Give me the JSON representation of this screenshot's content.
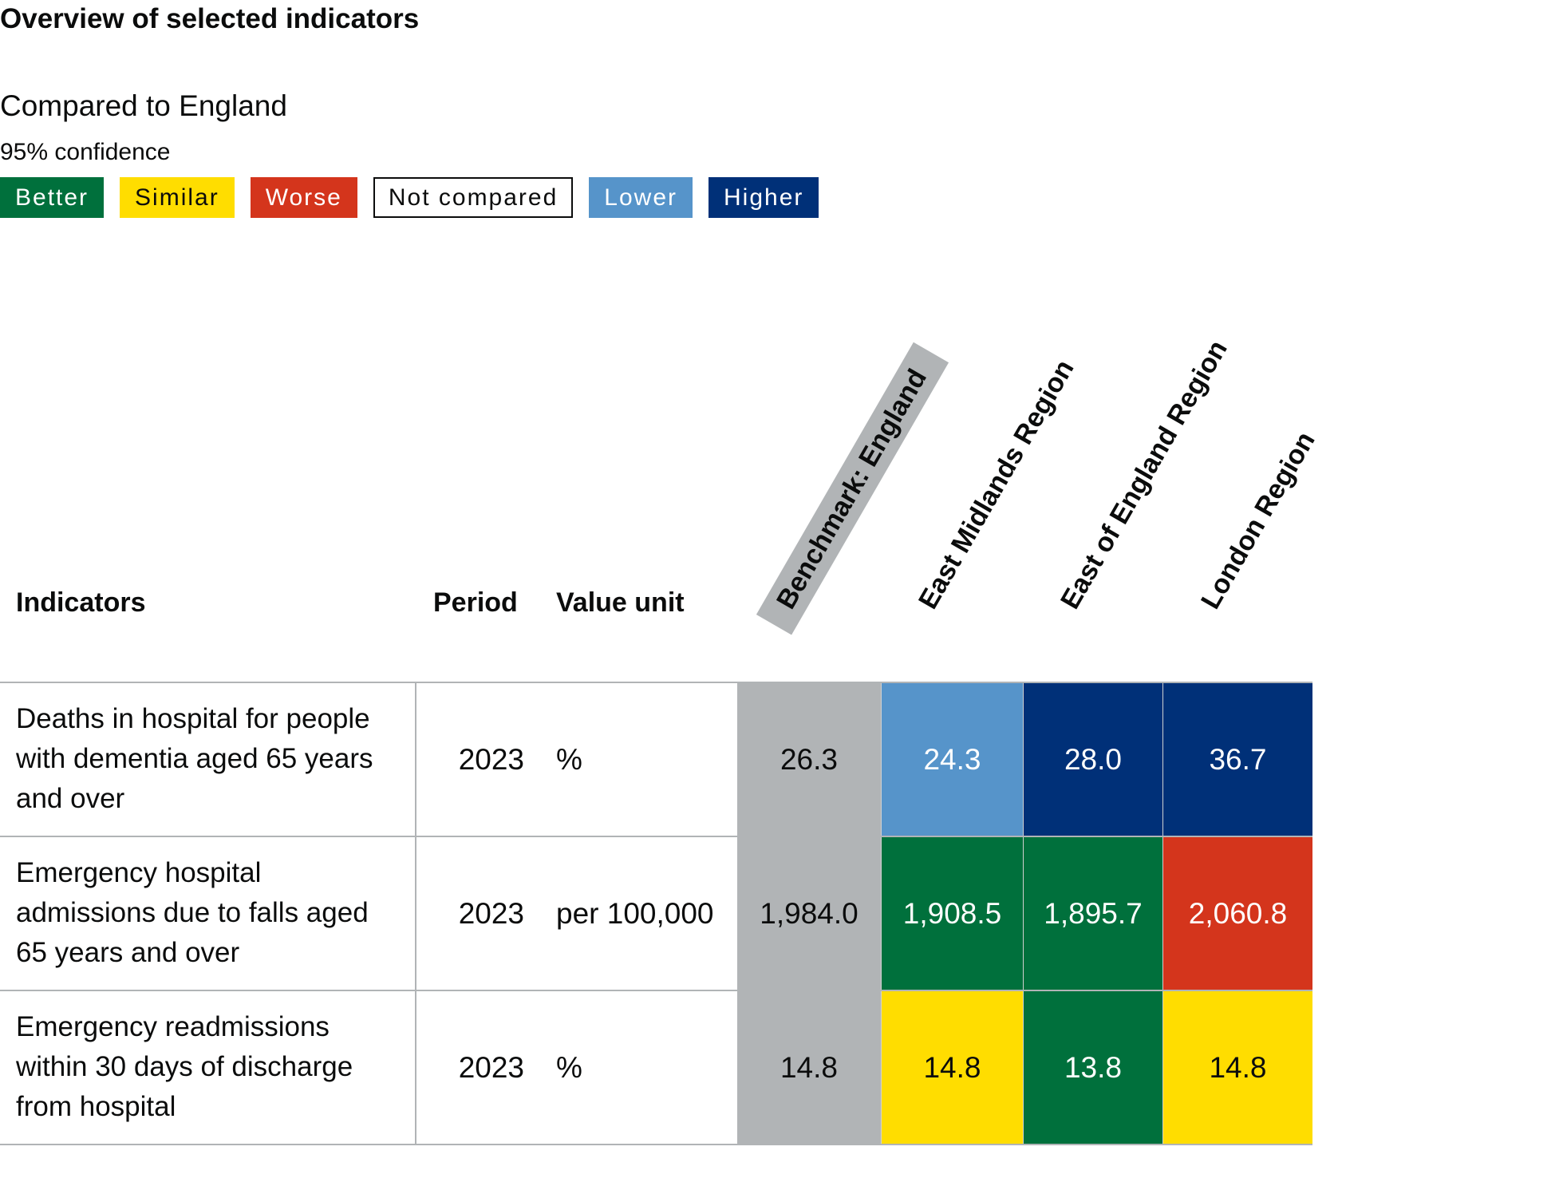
{
  "title": "Overview of selected indicators",
  "comparison": {
    "heading": "Compared to England",
    "confidence": "95% confidence",
    "legend": [
      {
        "key": "better",
        "label": "Better",
        "bg": "#00703c",
        "fg": "#ffffff"
      },
      {
        "key": "similar",
        "label": "Similar",
        "bg": "#ffdd00",
        "fg": "#0b0c0c"
      },
      {
        "key": "worse",
        "label": "Worse",
        "bg": "#d4351c",
        "fg": "#ffffff"
      },
      {
        "key": "not-compared",
        "label": "Not compared",
        "bg": "#ffffff",
        "fg": "#0b0c0c"
      },
      {
        "key": "lower",
        "label": "Lower",
        "bg": "#5694ca",
        "fg": "#ffffff"
      },
      {
        "key": "higher",
        "label": "Higher",
        "bg": "#003078",
        "fg": "#ffffff"
      }
    ]
  },
  "table": {
    "headers": {
      "indicators": "Indicators",
      "period": "Period",
      "value_unit": "Value unit",
      "areas": [
        "Benchmark: England",
        "East Midlands Region",
        "East of England Region",
        "London Region"
      ]
    },
    "colors": {
      "benchmark": "#b1b4b6",
      "better": "#00703c",
      "similar": "#ffdd00",
      "worse": "#d4351c",
      "lower": "#5694ca",
      "higher": "#003078"
    },
    "rows": [
      {
        "indicator": "Deaths in hospital for people with dementia aged 65 years and over",
        "period": "2023",
        "unit": "%",
        "values": [
          {
            "value": "26.3",
            "status": "benchmark"
          },
          {
            "value": "24.3",
            "status": "lower"
          },
          {
            "value": "28.0",
            "status": "higher"
          },
          {
            "value": "36.7",
            "status": "higher"
          }
        ]
      },
      {
        "indicator": "Emergency hospital admissions due to falls aged 65 years and over",
        "period": "2023",
        "unit": "per 100,000",
        "values": [
          {
            "value": "1,984.0",
            "status": "benchmark"
          },
          {
            "value": "1,908.5",
            "status": "better"
          },
          {
            "value": "1,895.7",
            "status": "better"
          },
          {
            "value": "2,060.8",
            "status": "worse"
          }
        ]
      },
      {
        "indicator": "Emergency readmissions within 30 days of discharge from hospital",
        "period": "2023",
        "unit": "%",
        "values": [
          {
            "value": "14.8",
            "status": "benchmark"
          },
          {
            "value": "14.8",
            "status": "similar"
          },
          {
            "value": "13.8",
            "status": "better"
          },
          {
            "value": "14.8",
            "status": "similar"
          }
        ]
      }
    ]
  }
}
